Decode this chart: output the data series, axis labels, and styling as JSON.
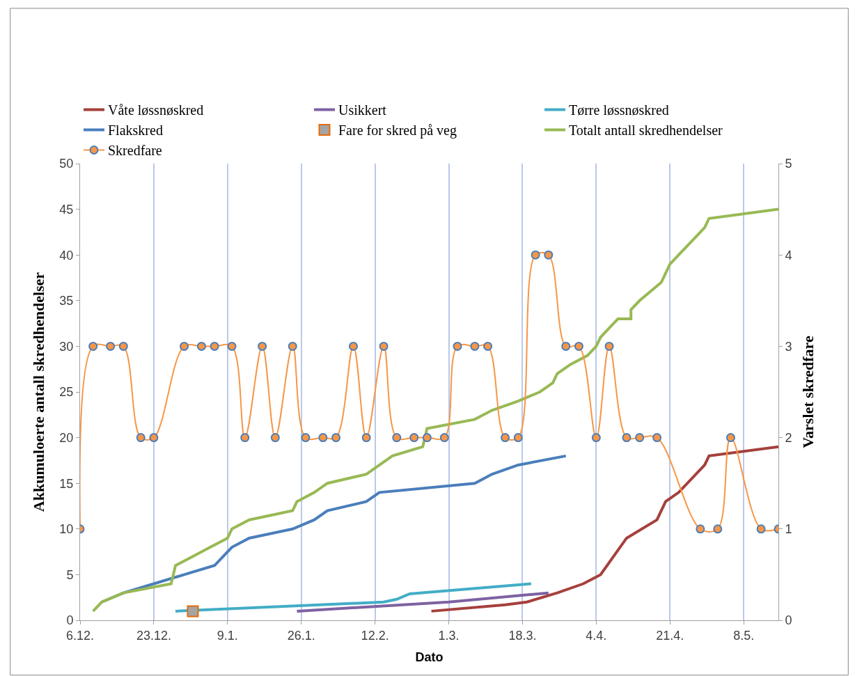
{
  "chart_data": {
    "type": "line",
    "xlabel": "Dato",
    "ylabel": "Akkumuloerte antall skredhendelser",
    "y2label": "Varslet skredfare",
    "xlim": [
      "2012-12-06",
      "2013-05-16"
    ],
    "xticks": [
      {
        "value": "2012-12-06",
        "label": "6.12."
      },
      {
        "value": "2012-12-23",
        "label": "23.12."
      },
      {
        "value": "2013-01-09",
        "label": "9.1."
      },
      {
        "value": "2013-01-26",
        "label": "26.1."
      },
      {
        "value": "2013-02-12",
        "label": "12.2."
      },
      {
        "value": "2013-03-01",
        "label": "1.3."
      },
      {
        "value": "2013-03-18",
        "label": "18.3."
      },
      {
        "value": "2013-04-04",
        "label": "4.4."
      },
      {
        "value": "2013-04-21",
        "label": "21.4."
      },
      {
        "value": "2013-05-08",
        "label": "8.5."
      }
    ],
    "ylim": [
      0,
      50
    ],
    "yticks": [
      0,
      5,
      10,
      15,
      20,
      25,
      30,
      35,
      40,
      45,
      50
    ],
    "y2lim": [
      0,
      5
    ],
    "y2ticks": [
      0,
      1,
      2,
      3,
      4,
      5
    ],
    "grid": "x",
    "legend": "top",
    "line_style": "solid",
    "series": [
      {
        "name": "Våte løssnøskred",
        "color": "#a5403c",
        "marker": "none",
        "x": [
          "2013-02-25",
          "2013-03-14",
          "2013-03-19",
          "2013-03-26",
          "2013-04-01",
          "2013-04-03",
          "2013-04-05",
          "2013-04-08",
          "2013-04-11",
          "2013-04-18",
          "2013-04-20",
          "2013-04-23",
          "2013-04-29",
          "2013-04-30",
          "2013-05-16"
        ],
        "values": [
          1,
          1.7,
          2,
          3,
          4,
          4.5,
          5,
          7,
          9,
          11,
          13,
          14,
          17,
          18,
          19
        ]
      },
      {
        "name": "Usikkert",
        "color": "#7e61a2",
        "marker": "none",
        "x": [
          "2013-01-25",
          "2013-03-01",
          "2013-03-24"
        ],
        "values": [
          1,
          2,
          3
        ]
      },
      {
        "name": "Tørre løssnøskred",
        "color": "#43adc6",
        "marker": "none",
        "x": [
          "2012-12-28",
          "2013-02-14",
          "2013-02-17",
          "2013-02-20",
          "2013-03-20"
        ],
        "values": [
          1,
          2,
          2.3,
          2.9,
          4
        ]
      },
      {
        "name": "Flakskred",
        "color": "#4a7ebb",
        "marker": "none",
        "x": [
          "2012-12-11",
          "2012-12-16",
          "2012-12-23",
          "2012-12-30",
          "2013-01-06",
          "2013-01-10",
          "2013-01-14",
          "2013-01-24",
          "2013-01-29",
          "2013-02-01",
          "2013-02-10",
          "2013-02-13",
          "2013-03-07",
          "2013-03-11",
          "2013-03-17",
          "2013-03-28"
        ],
        "values": [
          2,
          3,
          4,
          5,
          6,
          8,
          9,
          10,
          11,
          12,
          13,
          14,
          15,
          16,
          17,
          18
        ]
      },
      {
        "name": "Fare for skred på veg",
        "color": "#a5a5a5",
        "type": "scatter",
        "marker": "square",
        "x": [
          "2013-01-01"
        ],
        "values": [
          1
        ]
      },
      {
        "name": "Totalt antall skredhendelser",
        "color": "#98b954",
        "marker": "none",
        "x": [
          "2012-12-09",
          "2012-12-11",
          "2012-12-16",
          "2012-12-27",
          "2012-12-28",
          "2013-01-01",
          "2013-01-05",
          "2013-01-09",
          "2013-01-10",
          "2013-01-14",
          "2013-01-24",
          "2013-01-25",
          "2013-01-29",
          "2013-02-01",
          "2013-02-10",
          "2013-02-16",
          "2013-02-23",
          "2013-02-24",
          "2013-03-07",
          "2013-03-11",
          "2013-03-17",
          "2013-03-22",
          "2013-03-25",
          "2013-03-26",
          "2013-03-29",
          "2013-04-02",
          "2013-04-04",
          "2013-04-05",
          "2013-04-07",
          "2013-04-09",
          "2013-04-12",
          "2013-04-12",
          "2013-04-14",
          "2013-04-19",
          "2013-04-20",
          "2013-04-21",
          "2013-04-23",
          "2013-04-25",
          "2013-04-29",
          "2013-04-30",
          "2013-05-16"
        ],
        "values": [
          1,
          2,
          3,
          4,
          6,
          7,
          8,
          9,
          10,
          11,
          12,
          13,
          14,
          15,
          16,
          18,
          19,
          21,
          22,
          23,
          24,
          25,
          26,
          27,
          28,
          29,
          30,
          31,
          32,
          33,
          33,
          34,
          35,
          37,
          38,
          39,
          40,
          41,
          43,
          44,
          45
        ]
      },
      {
        "name": "Skredfare",
        "color": "#f79646",
        "marker": "circle",
        "axis": "y2",
        "x": [
          "2012-12-06",
          "2012-12-09",
          "2012-12-13",
          "2012-12-16",
          "2012-12-20",
          "2012-12-23",
          "2012-12-30",
          "2013-01-03",
          "2013-01-06",
          "2013-01-10",
          "2013-01-13",
          "2013-01-17",
          "2013-01-20",
          "2013-01-24",
          "2013-01-27",
          "2013-01-31",
          "2013-02-03",
          "2013-02-07",
          "2013-02-10",
          "2013-02-14",
          "2013-02-17",
          "2013-02-21",
          "2013-02-24",
          "2013-02-28",
          "2013-03-03",
          "2013-03-07",
          "2013-03-10",
          "2013-03-14",
          "2013-03-17",
          "2013-03-21",
          "2013-03-24",
          "2013-03-28",
          "2013-03-31",
          "2013-04-04",
          "2013-04-07",
          "2013-04-11",
          "2013-04-14",
          "2013-04-18",
          "2013-04-28",
          "2013-05-02",
          "2013-05-05",
          "2013-05-12",
          "2013-05-16"
        ],
        "values": [
          1,
          3,
          3,
          3,
          2,
          2,
          3,
          3,
          3,
          3,
          2,
          3,
          2,
          3,
          2,
          2,
          2,
          3,
          2,
          3,
          2,
          2,
          2,
          2,
          3,
          3,
          3,
          2,
          2,
          4,
          4,
          3,
          3,
          2,
          3,
          2,
          2,
          2,
          1,
          1,
          2,
          1,
          1
        ]
      }
    ]
  }
}
